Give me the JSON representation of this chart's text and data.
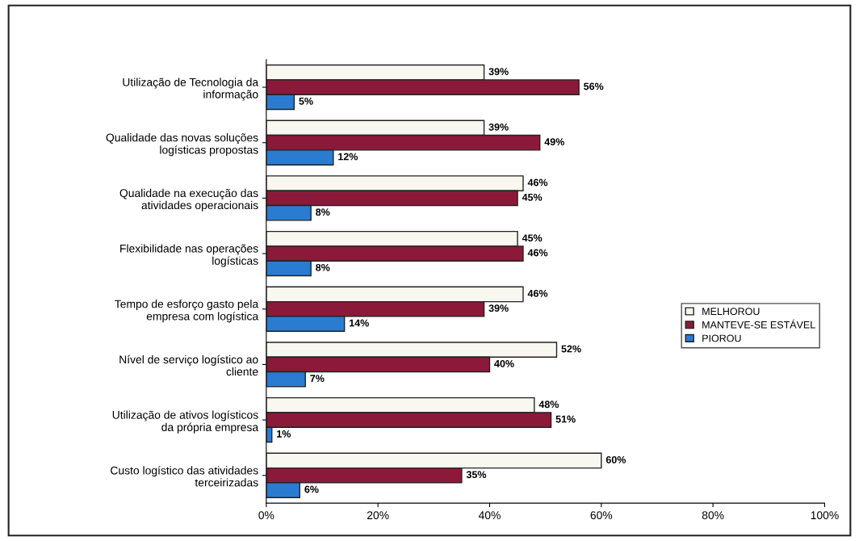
{
  "chart_data": {
    "type": "bar",
    "orientation": "horizontal",
    "categories": [
      "Utilização de Tecnologia da\ninformação",
      "Qualidade das novas soluções\nlogísticas propostas",
      "Qualidade na execução das\natividades operacionais",
      "Flexibilidade nas operações\nlogísticas",
      "Tempo de esforço gasto pela\nempresa com logística",
      "Nível de serviço logístico ao\ncliente",
      "Utilização de ativos logísticos\nda própria empresa",
      "Custo logístico das atividades\nterceirizadas"
    ],
    "series": [
      {
        "name": "MELHOROU",
        "color": "#f8f8f0",
        "values": [
          39,
          39,
          46,
          45,
          46,
          52,
          48,
          60
        ],
        "value_labels": [
          "39%",
          "39%",
          "46%",
          "45%",
          "46%",
          "52%",
          "48%",
          "60%"
        ]
      },
      {
        "name": "MANTEVE-SE ESTÁVEL",
        "color": "#8b1a3a",
        "values": [
          56,
          49,
          45,
          46,
          39,
          40,
          51,
          35
        ],
        "value_labels": [
          "56%",
          "49%",
          "45%",
          "46%",
          "39%",
          "40%",
          "51%",
          "35%"
        ]
      },
      {
        "name": "PIOROU",
        "color": "#2a7cd0",
        "values": [
          5,
          12,
          8,
          8,
          14,
          7,
          1,
          6
        ],
        "value_labels": [
          "5%",
          "12%",
          "8%",
          "8%",
          "14%",
          "7%",
          "1%",
          "6%"
        ]
      }
    ],
    "xlim": [
      0,
      100
    ],
    "xticks": [
      {
        "value": 0,
        "label": "0%"
      },
      {
        "value": 20,
        "label": "20%"
      },
      {
        "value": 40,
        "label": "40%"
      },
      {
        "value": 60,
        "label": "60%"
      },
      {
        "value": 80,
        "label": "80%"
      },
      {
        "value": 100,
        "label": "100%"
      }
    ],
    "grid": false,
    "legend": "right"
  }
}
